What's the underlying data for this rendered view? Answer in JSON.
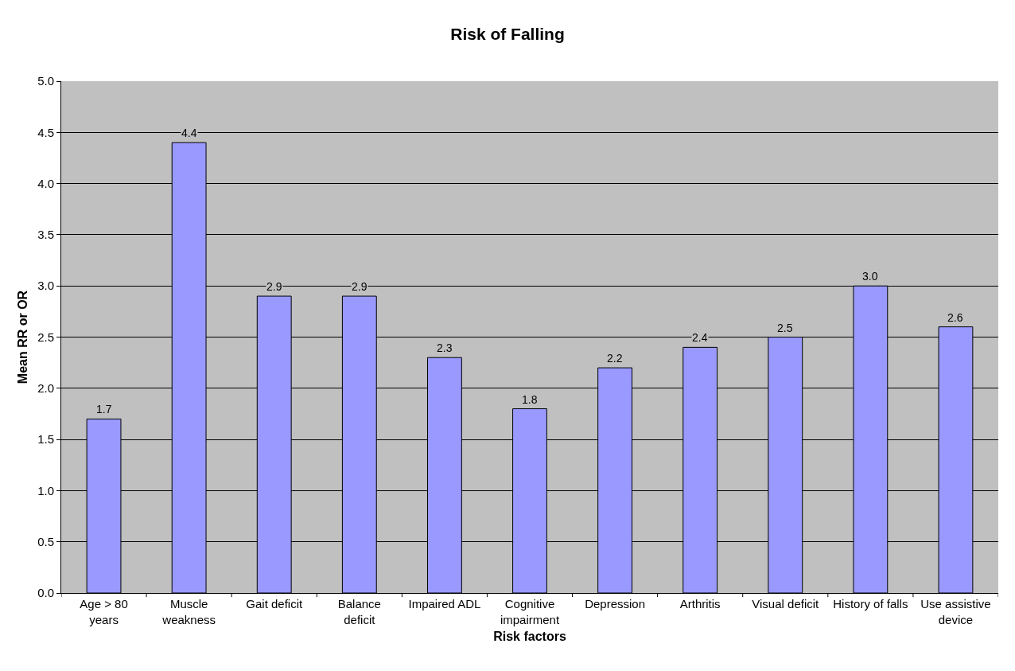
{
  "chart_data": {
    "type": "bar",
    "title": "Risk of Falling",
    "xlabel": "Risk factors",
    "ylabel": "Mean RR or OR",
    "categories": [
      "Age > 80\nyears",
      "Muscle\nweakness",
      "Gait deficit",
      "Balance\ndeficit",
      "Impaired ADL",
      "Cognitive\nimpairment",
      "Depression",
      "Arthritis",
      "Visual deficit",
      "History of falls",
      "Use assistive\ndevice"
    ],
    "values": [
      1.7,
      4.4,
      2.9,
      2.9,
      2.3,
      1.8,
      2.2,
      2.4,
      2.5,
      3.0,
      2.6
    ],
    "value_labels": [
      "1.7",
      "4.4",
      "2.9",
      "2.9",
      "2.3",
      "1.8",
      "2.2",
      "2.4",
      "2.5",
      "3.0",
      "2.6"
    ],
    "color": "#9999ff",
    "ylim": [
      0,
      5
    ],
    "yticks": [
      {
        "value": 0,
        "label": "0.0"
      },
      {
        "value": 0.5,
        "label": "0.5"
      },
      {
        "value": 1,
        "label": "1.0"
      },
      {
        "value": 1.5,
        "label": "1.5"
      },
      {
        "value": 2,
        "label": "2.0"
      },
      {
        "value": 2.5,
        "label": "2.5"
      },
      {
        "value": 3,
        "label": "3.0"
      },
      {
        "value": 3.5,
        "label": "3.5"
      },
      {
        "value": 4,
        "label": "4.0"
      },
      {
        "value": 4.5,
        "label": "4.5"
      },
      {
        "value": 5,
        "label": "5.0"
      }
    ],
    "grid": "y"
  }
}
